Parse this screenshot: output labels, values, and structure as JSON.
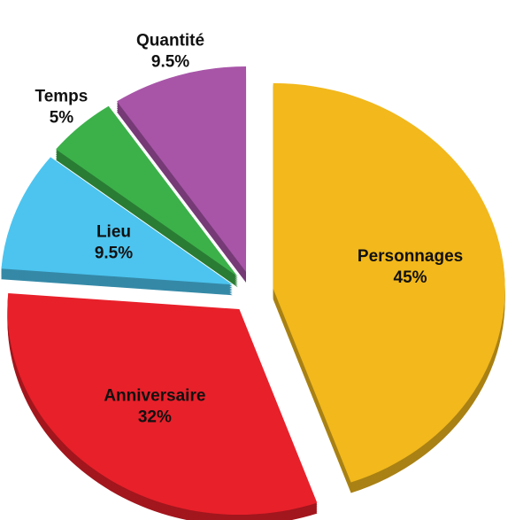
{
  "chart_data": {
    "type": "pie",
    "categories": [
      "Personnages",
      "Anniversaire",
      "Lieu",
      "Temps",
      "Quantité"
    ],
    "values": [
      45,
      32,
      9.5,
      5,
      9.5
    ],
    "value_labels": [
      "45%",
      "32%",
      "9.5%",
      "5%",
      "9.5%"
    ],
    "colors": [
      "#f2b81c",
      "#e8202a",
      "#4cc4ef",
      "#3cb14a",
      "#a855a8"
    ]
  }
}
